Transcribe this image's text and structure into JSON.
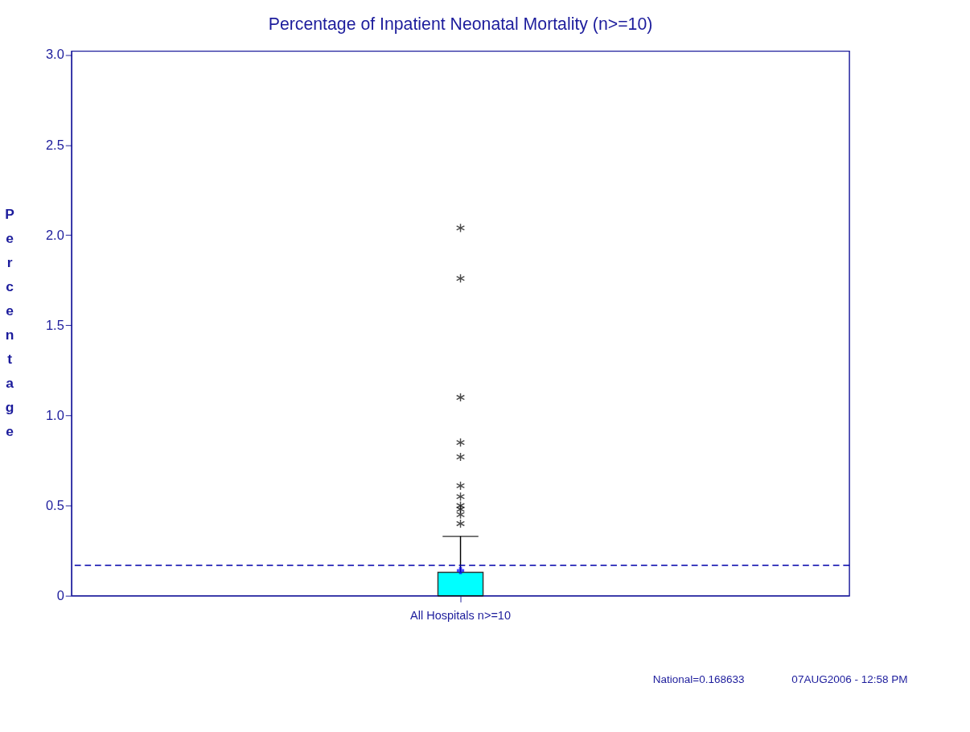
{
  "chart_data": {
    "type": "box",
    "title": "Percentage of Inpatient Neonatal Mortality (n>=10)",
    "ylabel": "Percentage",
    "categories": [
      "All Hospitals n>=10"
    ],
    "boxes": [
      {
        "low": 0,
        "q1": 0,
        "median": 0,
        "q3": 0.13,
        "high": 0.33,
        "mean": 0.14,
        "outliers": [
          2.04,
          1.76,
          1.1,
          0.85,
          0.77,
          0.61,
          0.55,
          0.5,
          0.48,
          0.45,
          0.4
        ]
      }
    ],
    "color": "#00ffff",
    "ylim": [
      0,
      3.02
    ],
    "yticks": [
      0,
      {
        "value": 0.5,
        "label": "0.5"
      },
      {
        "value": 1,
        "label": "1.0"
      },
      {
        "value": 1.5,
        "label": "1.5"
      },
      {
        "value": 2,
        "label": "2.0"
      },
      {
        "value": 2.5,
        "label": "2.5"
      },
      {
        "value": 3,
        "label": "3.0"
      }
    ],
    "ref_lines": [
      {
        "axis": "y",
        "value": 0.168633,
        "label": null,
        "color": "#0000aa",
        "line_style": "dashed"
      }
    ],
    "grid": false,
    "marker": "star",
    "annotations": [
      "National=0.168633",
      "07AUG2006 - 12:58 PM"
    ]
  }
}
